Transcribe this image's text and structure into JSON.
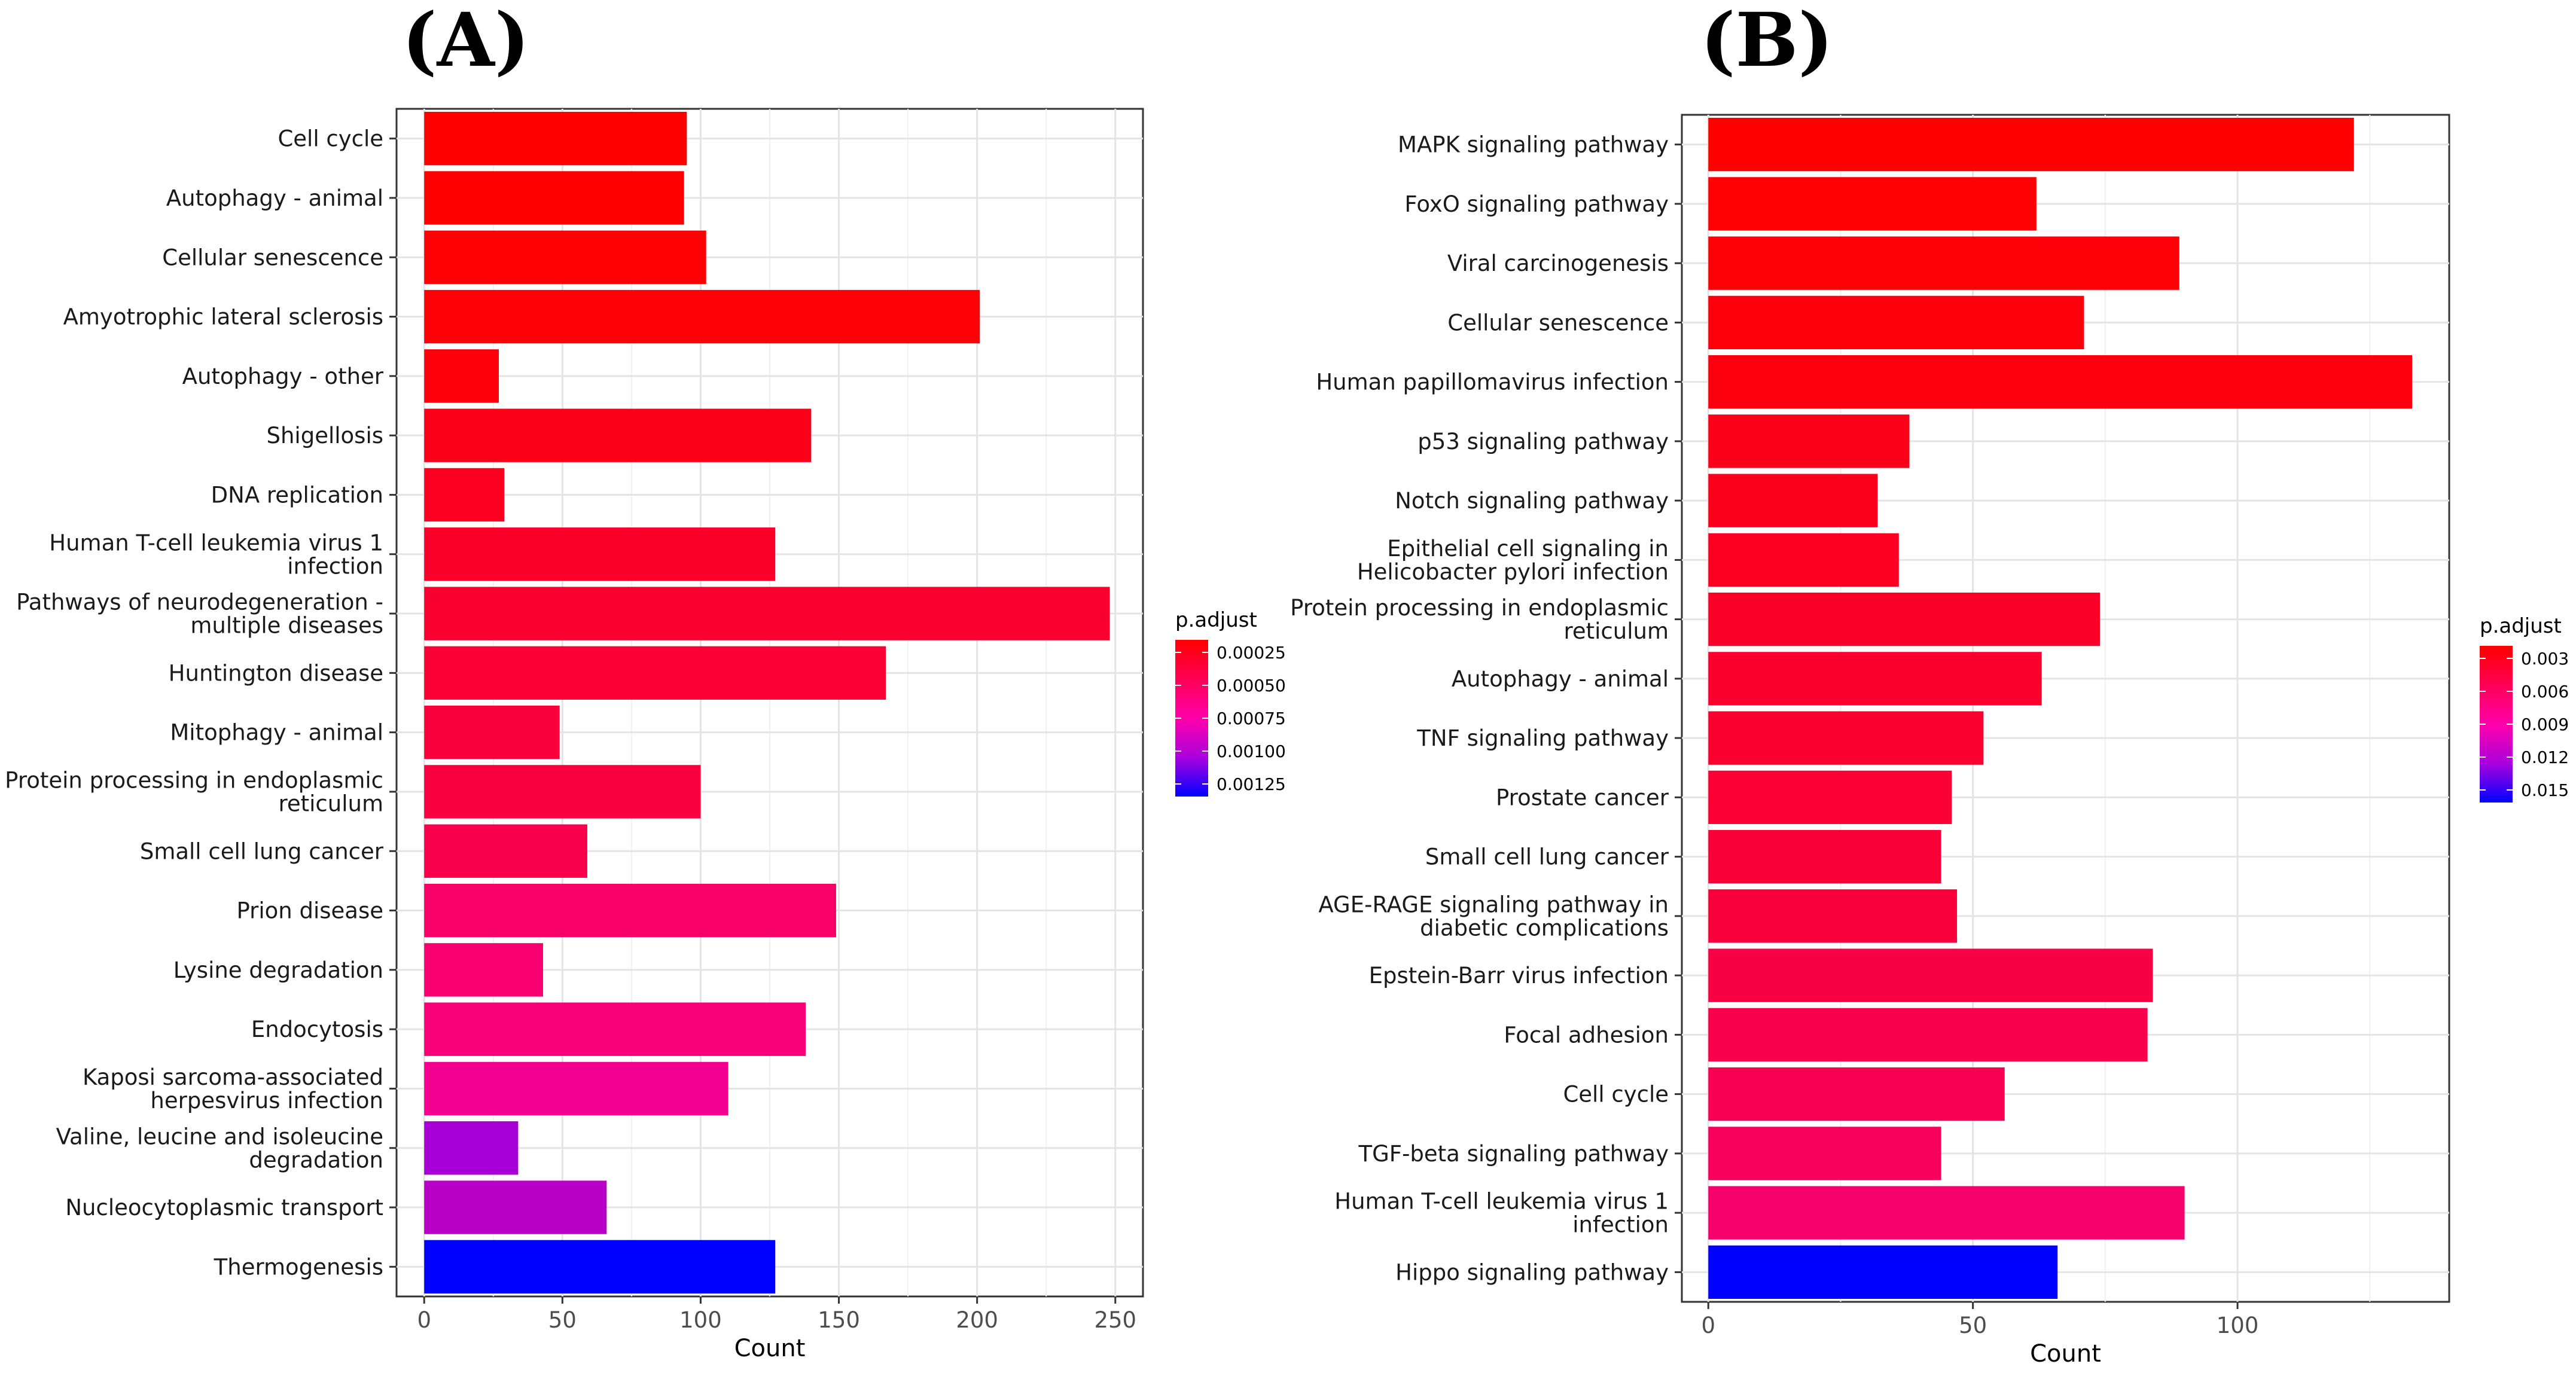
{
  "chart_data": [
    {
      "panel": "(A)",
      "type": "bar",
      "orientation": "horizontal",
      "xlabel": "Count",
      "ylabel": "",
      "xlim": [
        -10,
        260
      ],
      "xticks": [
        0,
        50,
        100,
        150,
        200,
        250
      ],
      "grid": true,
      "categories": [
        [
          "Cell cycle"
        ],
        [
          "Autophagy - animal"
        ],
        [
          "Cellular senescence"
        ],
        [
          "Amyotrophic lateral sclerosis"
        ],
        [
          "Autophagy - other"
        ],
        [
          "Shigellosis"
        ],
        [
          "DNA replication"
        ],
        [
          "Human T-cell leukemia virus 1",
          "infection"
        ],
        [
          "Pathways of neurodegeneration -",
          "multiple diseases"
        ],
        [
          "Huntington disease"
        ],
        [
          "Mitophagy - animal"
        ],
        [
          "Protein processing in endoplasmic",
          "reticulum"
        ],
        [
          "Small cell lung cancer"
        ],
        [
          "Prion disease"
        ],
        [
          "Lysine degradation"
        ],
        [
          "Endocytosis"
        ],
        [
          "Kaposi sarcoma-associated",
          "herpesvirus infection"
        ],
        [
          "Valine, leucine and isoleucine",
          "degradation"
        ],
        [
          "Nucleocytoplasmic transport"
        ],
        [
          "Thermogenesis"
        ]
      ],
      "values": [
        95,
        94,
        102,
        201,
        27,
        140,
        29,
        127,
        248,
        167,
        49,
        100,
        59,
        149,
        43,
        138,
        110,
        34,
        66,
        127
      ],
      "colors": [
        "#ff0000",
        "#ff0000",
        "#ff0004",
        "#fd0008",
        "#fd000c",
        "#fb0018",
        "#fb0020",
        "#fb0028",
        "#fa0030",
        "#fa0034",
        "#fa003c",
        "#f90040",
        "#f8004c",
        "#f70068",
        "#f80070",
        "#f80078",
        "#f40090",
        "#a700d6",
        "#b800c6",
        "#0000ff"
      ],
      "legend": {
        "title": "p.adjust",
        "position": "right",
        "ticks": [
          "0.00025",
          "0.00050",
          "0.00075",
          "0.00100",
          "0.00125"
        ],
        "color_low": "#ff0000",
        "color_high": "#0000ff"
      }
    },
    {
      "panel": "(B)",
      "type": "bar",
      "orientation": "horizontal",
      "xlabel": "Count",
      "ylabel": "",
      "xlim": [
        -5,
        140
      ],
      "xticks": [
        0,
        50,
        100
      ],
      "grid": true,
      "categories": [
        [
          "MAPK signaling pathway"
        ],
        [
          "FoxO signaling pathway"
        ],
        [
          "Viral carcinogenesis"
        ],
        [
          "Cellular senescence"
        ],
        [
          "Human papillomavirus infection"
        ],
        [
          "p53 signaling pathway"
        ],
        [
          "Notch signaling pathway"
        ],
        [
          "Epithelial cell signaling in",
          "Helicobacter pylori infection"
        ],
        [
          "Protein processing in endoplasmic",
          "reticulum"
        ],
        [
          "Autophagy - animal"
        ],
        [
          "TNF signaling pathway"
        ],
        [
          "Prostate cancer"
        ],
        [
          "Small cell lung cancer"
        ],
        [
          "AGE-RAGE signaling pathway in",
          "diabetic complications"
        ],
        [
          "Epstein-Barr virus infection"
        ],
        [
          "Focal adhesion"
        ],
        [
          "Cell cycle"
        ],
        [
          "TGF-beta signaling pathway"
        ],
        [
          "Human T-cell leukemia virus 1",
          "infection"
        ],
        [
          "Hippo signaling pathway"
        ]
      ],
      "values": [
        122,
        62,
        89,
        71,
        133,
        38,
        32,
        36,
        74,
        63,
        52,
        46,
        44,
        47,
        84,
        83,
        56,
        44,
        90,
        66
      ],
      "colors": [
        "#ff0000",
        "#ff0004",
        "#fd0008",
        "#fd000c",
        "#fc0010",
        "#fb0018",
        "#fb001c",
        "#fb0020",
        "#fa0028",
        "#fa002c",
        "#fa0030",
        "#fa0034",
        "#f90038",
        "#f9003c",
        "#f80044",
        "#f8004c",
        "#f70054",
        "#f7005c",
        "#f6006c",
        "#0000ff"
      ],
      "legend": {
        "title": "p.adjust",
        "position": "right",
        "ticks": [
          "0.003",
          "0.006",
          "0.009",
          "0.012",
          "0.015"
        ],
        "color_low": "#ff0000",
        "color_high": "#0000ff"
      }
    }
  ]
}
